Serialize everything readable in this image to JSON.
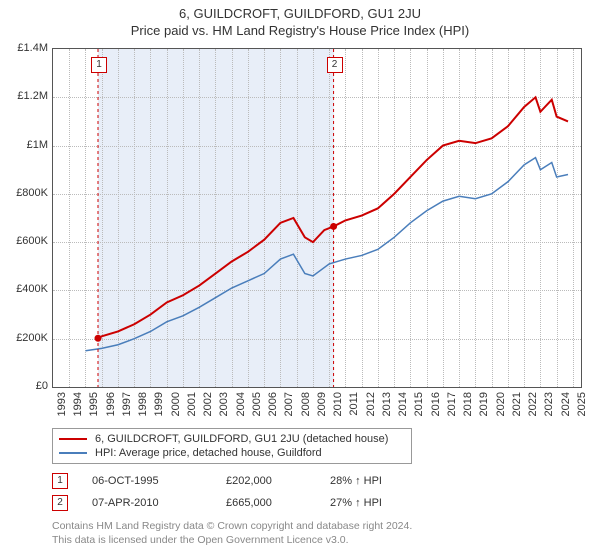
{
  "title": "6, GUILDCROFT, GUILDFORD, GU1 2JU",
  "subtitle": "Price paid vs. HM Land Registry's House Price Index (HPI)",
  "chart": {
    "type": "line",
    "background_color": "#ffffff",
    "grid_color": "#bbbbbb",
    "border_color": "#555555",
    "x_years": [
      1993,
      1994,
      1995,
      1996,
      1997,
      1998,
      1999,
      2000,
      2001,
      2002,
      2003,
      2004,
      2005,
      2006,
      2007,
      2008,
      2009,
      2010,
      2011,
      2012,
      2013,
      2014,
      2015,
      2016,
      2017,
      2018,
      2019,
      2020,
      2021,
      2022,
      2023,
      2024,
      2025
    ],
    "xlim": [
      1993,
      2025.5
    ],
    "ylim": [
      0,
      1400000
    ],
    "ytick_step": 200000,
    "ytick_labels": [
      "£0",
      "£200K",
      "£400K",
      "£600K",
      "£800K",
      "£1M",
      "£1.2M",
      "£1.4M"
    ],
    "shade_start": 1995.77,
    "shade_end": 2010.27,
    "series": [
      {
        "name": "property",
        "label": "6, GUILDCROFT, GUILDFORD, GU1 2JU (detached house)",
        "color": "#cc0000",
        "width": 2,
        "points": [
          [
            1995.77,
            202000
          ],
          [
            1996,
            210000
          ],
          [
            1997,
            230000
          ],
          [
            1998,
            260000
          ],
          [
            1999,
            300000
          ],
          [
            2000,
            350000
          ],
          [
            2001,
            380000
          ],
          [
            2002,
            420000
          ],
          [
            2003,
            470000
          ],
          [
            2004,
            520000
          ],
          [
            2005,
            560000
          ],
          [
            2006,
            610000
          ],
          [
            2007,
            680000
          ],
          [
            2007.8,
            700000
          ],
          [
            2008.5,
            620000
          ],
          [
            2009,
            600000
          ],
          [
            2009.7,
            650000
          ],
          [
            2010.27,
            665000
          ],
          [
            2011,
            690000
          ],
          [
            2012,
            710000
          ],
          [
            2013,
            740000
          ],
          [
            2014,
            800000
          ],
          [
            2015,
            870000
          ],
          [
            2016,
            940000
          ],
          [
            2017,
            1000000
          ],
          [
            2018,
            1020000
          ],
          [
            2019,
            1010000
          ],
          [
            2020,
            1030000
          ],
          [
            2021,
            1080000
          ],
          [
            2022,
            1160000
          ],
          [
            2022.7,
            1200000
          ],
          [
            2023,
            1140000
          ],
          [
            2023.7,
            1190000
          ],
          [
            2024,
            1120000
          ],
          [
            2024.7,
            1100000
          ]
        ]
      },
      {
        "name": "hpi",
        "label": "HPI: Average price, detached house, Guildford",
        "color": "#4a7ebb",
        "width": 1.5,
        "points": [
          [
            1995,
            150000
          ],
          [
            1996,
            160000
          ],
          [
            1997,
            175000
          ],
          [
            1998,
            200000
          ],
          [
            1999,
            230000
          ],
          [
            2000,
            270000
          ],
          [
            2001,
            295000
          ],
          [
            2002,
            330000
          ],
          [
            2003,
            370000
          ],
          [
            2004,
            410000
          ],
          [
            2005,
            440000
          ],
          [
            2006,
            470000
          ],
          [
            2007,
            530000
          ],
          [
            2007.8,
            550000
          ],
          [
            2008.5,
            470000
          ],
          [
            2009,
            460000
          ],
          [
            2010,
            510000
          ],
          [
            2011,
            530000
          ],
          [
            2012,
            545000
          ],
          [
            2013,
            570000
          ],
          [
            2014,
            620000
          ],
          [
            2015,
            680000
          ],
          [
            2016,
            730000
          ],
          [
            2017,
            770000
          ],
          [
            2018,
            790000
          ],
          [
            2019,
            780000
          ],
          [
            2020,
            800000
          ],
          [
            2021,
            850000
          ],
          [
            2022,
            920000
          ],
          [
            2022.7,
            950000
          ],
          [
            2023,
            900000
          ],
          [
            2023.7,
            930000
          ],
          [
            2024,
            870000
          ],
          [
            2024.7,
            880000
          ]
        ]
      }
    ],
    "markers": [
      {
        "n": "1",
        "x": 1995.77,
        "y": 202000,
        "color": "#cc0000"
      },
      {
        "n": "2",
        "x": 2010.27,
        "y": 665000,
        "color": "#cc0000"
      }
    ]
  },
  "legend": {
    "series1": "6, GUILDCROFT, GUILDFORD, GU1 2JU (detached house)",
    "series2": "HPI: Average price, detached house, Guildford"
  },
  "transactions": [
    {
      "n": "1",
      "date": "06-OCT-1995",
      "price": "£202,000",
      "delta": "28% ↑ HPI",
      "color": "#cc0000"
    },
    {
      "n": "2",
      "date": "07-APR-2010",
      "price": "£665,000",
      "delta": "27% ↑ HPI",
      "color": "#cc0000"
    }
  ],
  "attribution": {
    "line1": "Contains HM Land Registry data © Crown copyright and database right 2024.",
    "line2": "This data is licensed under the Open Government Licence v3.0."
  }
}
